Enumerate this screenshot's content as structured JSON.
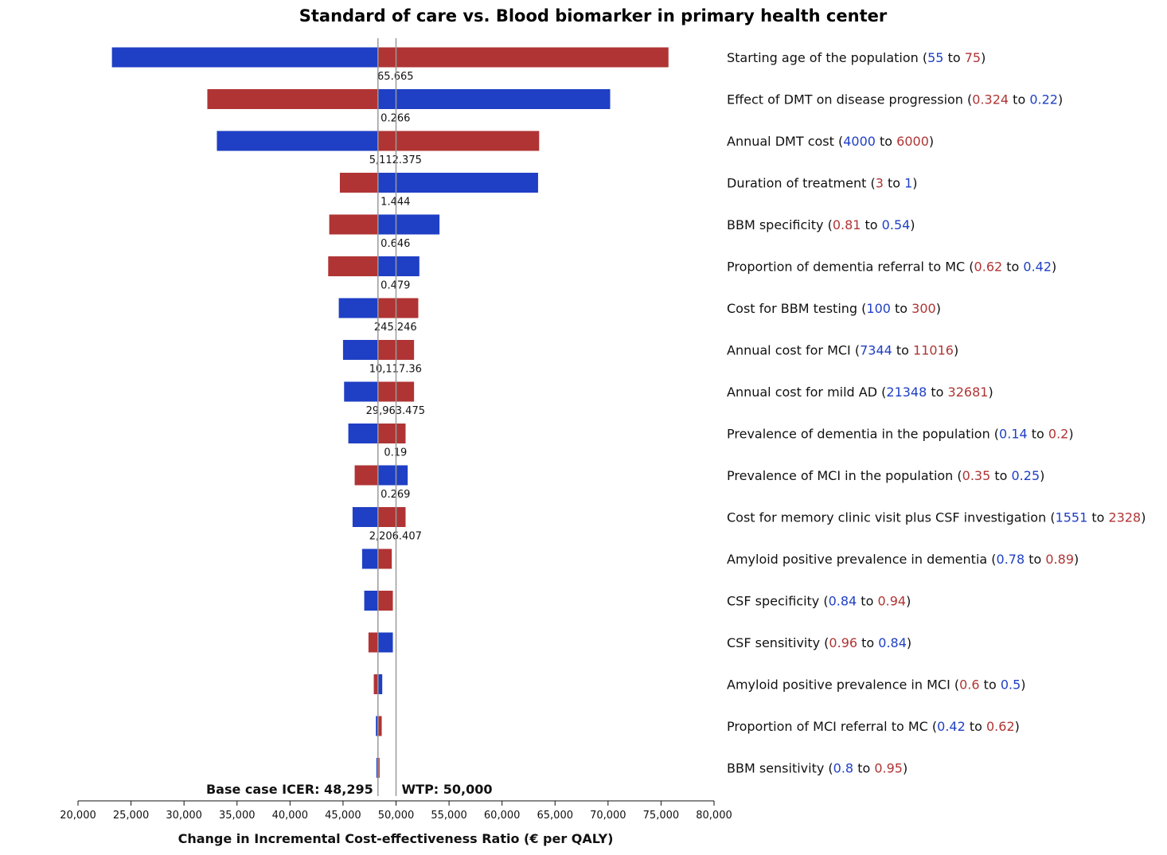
{
  "chart_data": {
    "type": "tornado",
    "title": "Standard of care vs. Blood biomarker in primary health center",
    "xlabel": "Change in Incremental Cost-effectiveness Ratio (€ per QALY)",
    "xlim": [
      20000,
      80000
    ],
    "xticks": [
      "20,000",
      "25,000",
      "30,000",
      "35,000",
      "40,000",
      "45,000",
      "50,000",
      "55,000",
      "60,000",
      "65,000",
      "70,000",
      "75,000",
      "80,000"
    ],
    "base_case": 48295,
    "base_case_label": "Base case ICER: 48,295",
    "wtp": 50000,
    "wtp_label": "WTP: 50,000",
    "colors": {
      "low": "#1f3fc4",
      "high": "#b03434"
    },
    "params": [
      {
        "name": "Starting age of the population",
        "low": "55",
        "high": "75",
        "base_value": "65.665",
        "blue_end": 23200,
        "red_end": 75700
      },
      {
        "name": "Effect of DMT on disease progression",
        "low": "0.324",
        "high": "0.22",
        "base_value": "0.266",
        "blue_end": 70200,
        "red_end": 32200
      },
      {
        "name": "Annual DMT cost",
        "low": "4000",
        "high": "6000",
        "base_value": "5,112.375",
        "blue_end": 33100,
        "red_end": 63500
      },
      {
        "name": "Duration of treatment",
        "low": "3",
        "high": "1",
        "base_value": "1.444",
        "blue_end": 63400,
        "red_end": 44700
      },
      {
        "name": "BBM specificity",
        "low": "0.81",
        "high": "0.54",
        "base_value": "0.646",
        "blue_end": 54100,
        "red_end": 43700
      },
      {
        "name": "Proportion of dementia referral to MC",
        "low": "0.62",
        "high": "0.42",
        "base_value": "0.479",
        "blue_end": 52200,
        "red_end": 43600
      },
      {
        "name": "Cost for BBM testing",
        "low": "100",
        "high": "300",
        "base_value": "245.246",
        "blue_end": 44600,
        "red_end": 52100
      },
      {
        "name": "Annual cost for MCI",
        "low": "7344",
        "high": "11016",
        "base_value": "10,117.36",
        "blue_end": 45000,
        "red_end": 51700
      },
      {
        "name": "Annual cost for mild AD",
        "low": "21348",
        "high": "32681",
        "base_value": "29,963.475",
        "blue_end": 45100,
        "red_end": 51700
      },
      {
        "name": "Prevalence of dementia in the population",
        "low": "0.14",
        "high": "0.2",
        "base_value": "0.19",
        "blue_end": 45500,
        "red_end": 50900
      },
      {
        "name": "Prevalence of MCI in the population",
        "low": "0.35",
        "high": "0.25",
        "base_value": "0.269",
        "blue_end": 51100,
        "red_end": 46100
      },
      {
        "name": "Cost for memory clinic visit plus CSF investigation",
        "low": "1551",
        "high": "2328",
        "base_value": "2,206.407",
        "blue_end": 45900,
        "red_end": 50900
      },
      {
        "name": "Amyloid positive prevalence in dementia",
        "low": "0.78",
        "high": "0.89",
        "base_value": "",
        "blue_end": 46800,
        "red_end": 49600
      },
      {
        "name": "CSF specificity",
        "low": "0.84",
        "high": "0.94",
        "base_value": "",
        "blue_end": 47000,
        "red_end": 49700
      },
      {
        "name": "CSF sensitivity",
        "low": "0.96",
        "high": "0.84",
        "base_value": "",
        "blue_end": 49700,
        "red_end": 47400
      },
      {
        "name": "Amyloid positive prevalence in MCI",
        "low": "0.6",
        "high": "0.5",
        "base_value": "",
        "blue_end": 48700,
        "red_end": 47900
      },
      {
        "name": "Proportion of MCI referral to MC",
        "low": "0.42",
        "high": "0.62",
        "base_value": "",
        "blue_end": 48100,
        "red_end": 48650
      },
      {
        "name": "BBM sensitivity",
        "low": "0.8",
        "high": "0.95",
        "base_value": "",
        "blue_end": 48150,
        "red_end": 48450
      }
    ]
  }
}
